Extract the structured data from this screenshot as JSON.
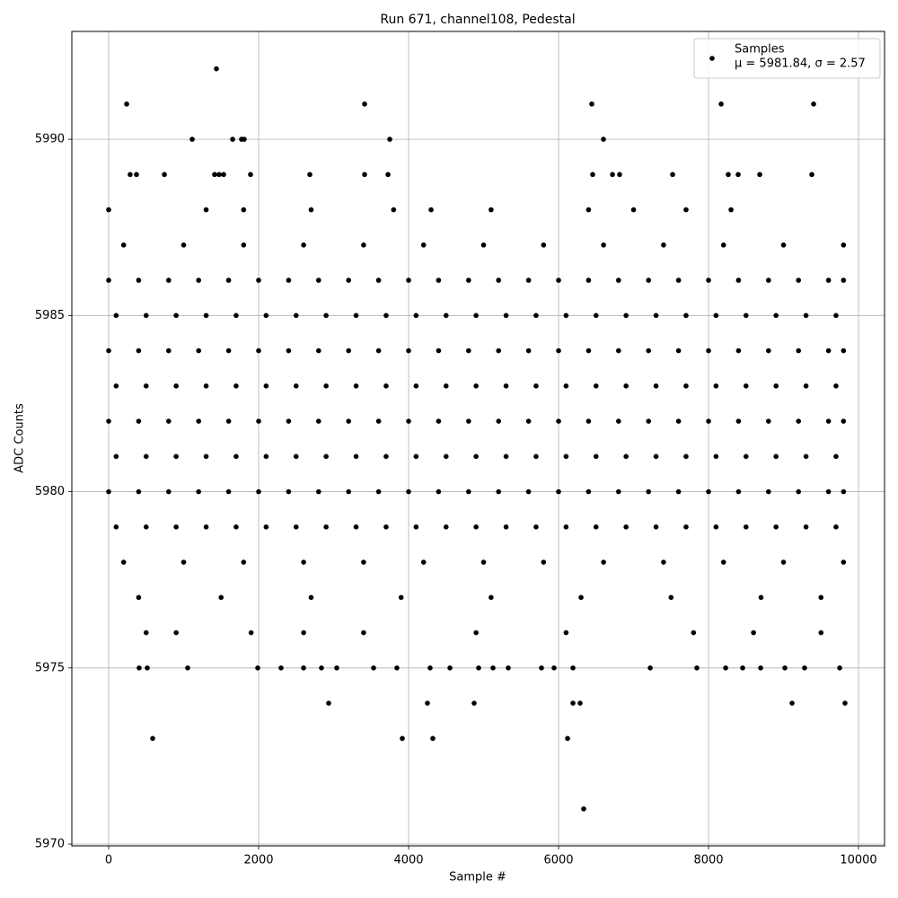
{
  "chart_data": {
    "type": "scatter",
    "title": "Run 671, channel108, Pedestal",
    "x_label": "Sample #",
    "y_label": "ADC Counts",
    "xlim": [
      -491,
      10347
    ],
    "ylim": [
      5969.95,
      5993.06
    ],
    "xticks": [
      0,
      2000,
      4000,
      6000,
      8000,
      10000
    ],
    "yticks": [
      5970,
      5975,
      5980,
      5985,
      5990
    ],
    "grid": true,
    "legend_position": "upper right",
    "legend_stats": "μ = 5981.84, σ = 2.57",
    "series": [
      {
        "name": "Samples",
        "color": "#000000",
        "x": [
          0,
          400,
          800,
          1200,
          1600,
          2000,
          2400,
          2800,
          3200,
          3600,
          4000,
          4400,
          4800,
          5200,
          5600,
          6000,
          6400,
          6800,
          7200,
          7600,
          8000,
          8400,
          8800,
          9200,
          9600,
          9800,
          100,
          500,
          900,
          1300,
          1700,
          2100,
          2500,
          2900,
          3300,
          3700,
          4100,
          4500,
          4900,
          5300,
          5700,
          6100,
          6500,
          6900,
          7300,
          7700,
          8100,
          8500,
          8900,
          9300,
          9700,
          0,
          400,
          800,
          1200,
          1600,
          2000,
          2400,
          2800,
          3200,
          3600,
          4000,
          4400,
          4800,
          5200,
          5600,
          6000,
          6400,
          6800,
          7200,
          7600,
          8000,
          8400,
          8800,
          9200,
          9600,
          9800,
          100,
          500,
          900,
          1300,
          1700,
          2100,
          2500,
          2900,
          3300,
          3700,
          4100,
          4500,
          4900,
          5300,
          5700,
          6100,
          6500,
          6900,
          7300,
          7700,
          8100,
          8500,
          8900,
          9300,
          9700,
          0,
          400,
          800,
          1200,
          1600,
          2000,
          2400,
          2800,
          3200,
          3600,
          4000,
          4400,
          4800,
          5200,
          5600,
          6000,
          6400,
          6800,
          7200,
          7600,
          8000,
          8400,
          8800,
          9200,
          9600,
          9800,
          100,
          500,
          900,
          1300,
          1700,
          2100,
          2500,
          2900,
          3300,
          3700,
          4100,
          4500,
          4900,
          5300,
          5700,
          6100,
          6500,
          6900,
          7300,
          7700,
          8100,
          8500,
          8900,
          9300,
          9700,
          0,
          400,
          800,
          1200,
          1600,
          2000,
          2400,
          2800,
          3200,
          3600,
          4000,
          4400,
          4800,
          5200,
          5600,
          6000,
          6400,
          6800,
          7200,
          7600,
          8000,
          8400,
          8800,
          9200,
          9600,
          9800,
          100,
          500,
          900,
          1300,
          1700,
          2100,
          2500,
          2900,
          3300,
          3700,
          4100,
          4500,
          4900,
          5300,
          5700,
          6100,
          6500,
          6900,
          7300,
          7700,
          8100,
          8500,
          8900,
          9300,
          9700,
          200,
          1000,
          1800,
          2600,
          3400,
          4200,
          5000,
          5800,
          6600,
          7400,
          8200,
          9000,
          9800,
          200,
          1000,
          1800,
          2600,
          3400,
          4200,
          5000,
          5800,
          6600,
          7400,
          8200,
          9000,
          9800,
          400,
          1500,
          2700,
          3900,
          5100,
          6300,
          7500,
          8700,
          9500,
          500,
          900,
          1900,
          2600,
          3400,
          4900,
          6100,
          7800,
          8600,
          9500,
          0,
          1300,
          1800,
          2700,
          3800,
          4300,
          5100,
          6400,
          7000,
          7700,
          8300,
          287,
          371,
          743,
          1413,
          1473,
          1533,
          1892,
          2683,
          3413,
          3725,
          6455,
          6719,
          6814,
          7521,
          8263,
          8395,
          8683,
          9377,
          1114,
          1653,
          1772,
          1808,
          3749,
          6599,
          240,
          3413,
          6443,
          8168,
          9401,
          1437,
          407,
          515,
          1054,
          1988,
          2299,
          2599,
          2838,
          3042,
          3533,
          3844,
          4287,
          4551,
          4934,
          5126,
          5329,
          5772,
          5940,
          6192,
          7222,
          7844,
          8228,
          8455,
          8695,
          9018,
          9281,
          9749,
          2934,
          4251,
          4874,
          6192,
          6287,
          9114,
          9820,
          587,
          3916,
          4323,
          6120,
          6335
        ],
        "values": [
          5980,
          5980,
          5980,
          5980,
          5980,
          5980,
          5980,
          5980,
          5980,
          5980,
          5980,
          5980,
          5980,
          5980,
          5980,
          5980,
          5980,
          5980,
          5980,
          5980,
          5980,
          5980,
          5980,
          5980,
          5980,
          5980,
          5981,
          5981,
          5981,
          5981,
          5981,
          5981,
          5981,
          5981,
          5981,
          5981,
          5981,
          5981,
          5981,
          5981,
          5981,
          5981,
          5981,
          5981,
          5981,
          5981,
          5981,
          5981,
          5981,
          5981,
          5981,
          5982,
          5982,
          5982,
          5982,
          5982,
          5982,
          5982,
          5982,
          5982,
          5982,
          5982,
          5982,
          5982,
          5982,
          5982,
          5982,
          5982,
          5982,
          5982,
          5982,
          5982,
          5982,
          5982,
          5982,
          5982,
          5982,
          5983,
          5983,
          5983,
          5983,
          5983,
          5983,
          5983,
          5983,
          5983,
          5983,
          5983,
          5983,
          5983,
          5983,
          5983,
          5983,
          5983,
          5983,
          5983,
          5983,
          5983,
          5983,
          5983,
          5983,
          5983,
          5984,
          5984,
          5984,
          5984,
          5984,
          5984,
          5984,
          5984,
          5984,
          5984,
          5984,
          5984,
          5984,
          5984,
          5984,
          5984,
          5984,
          5984,
          5984,
          5984,
          5984,
          5984,
          5984,
          5984,
          5984,
          5984,
          5985,
          5985,
          5985,
          5985,
          5985,
          5985,
          5985,
          5985,
          5985,
          5985,
          5985,
          5985,
          5985,
          5985,
          5985,
          5985,
          5985,
          5985,
          5985,
          5985,
          5985,
          5985,
          5985,
          5985,
          5985,
          5986,
          5986,
          5986,
          5986,
          5986,
          5986,
          5986,
          5986,
          5986,
          5986,
          5986,
          5986,
          5986,
          5986,
          5986,
          5986,
          5986,
          5986,
          5986,
          5986,
          5986,
          5986,
          5986,
          5986,
          5986,
          5986,
          5979,
          5979,
          5979,
          5979,
          5979,
          5979,
          5979,
          5979,
          5979,
          5979,
          5979,
          5979,
          5979,
          5979,
          5979,
          5979,
          5979,
          5979,
          5979,
          5979,
          5979,
          5979,
          5979,
          5979,
          5979,
          5987,
          5987,
          5987,
          5987,
          5987,
          5987,
          5987,
          5987,
          5987,
          5987,
          5987,
          5987,
          5987,
          5978,
          5978,
          5978,
          5978,
          5978,
          5978,
          5978,
          5978,
          5978,
          5978,
          5978,
          5978,
          5978,
          5977,
          5977,
          5977,
          5977,
          5977,
          5977,
          5977,
          5977,
          5977,
          5976,
          5976,
          5976,
          5976,
          5976,
          5976,
          5976,
          5976,
          5976,
          5976,
          5988,
          5988,
          5988,
          5988,
          5988,
          5988,
          5988,
          5988,
          5988,
          5988,
          5988,
          5989,
          5989,
          5989,
          5989,
          5989,
          5989,
          5989,
          5989,
          5989,
          5989,
          5989,
          5989,
          5989,
          5989,
          5989,
          5989,
          5989,
          5989,
          5990,
          5990,
          5990,
          5990,
          5990,
          5990,
          5991,
          5991,
          5991,
          5991,
          5991,
          5992,
          5975,
          5975,
          5975,
          5975,
          5975,
          5975,
          5975,
          5975,
          5975,
          5975,
          5975,
          5975,
          5975,
          5975,
          5975,
          5975,
          5975,
          5975,
          5975,
          5975,
          5975,
          5975,
          5975,
          5975,
          5975,
          5975,
          5974,
          5974,
          5974,
          5974,
          5974,
          5974,
          5974,
          5973,
          5973,
          5973,
          5973,
          5971
        ]
      }
    ]
  }
}
